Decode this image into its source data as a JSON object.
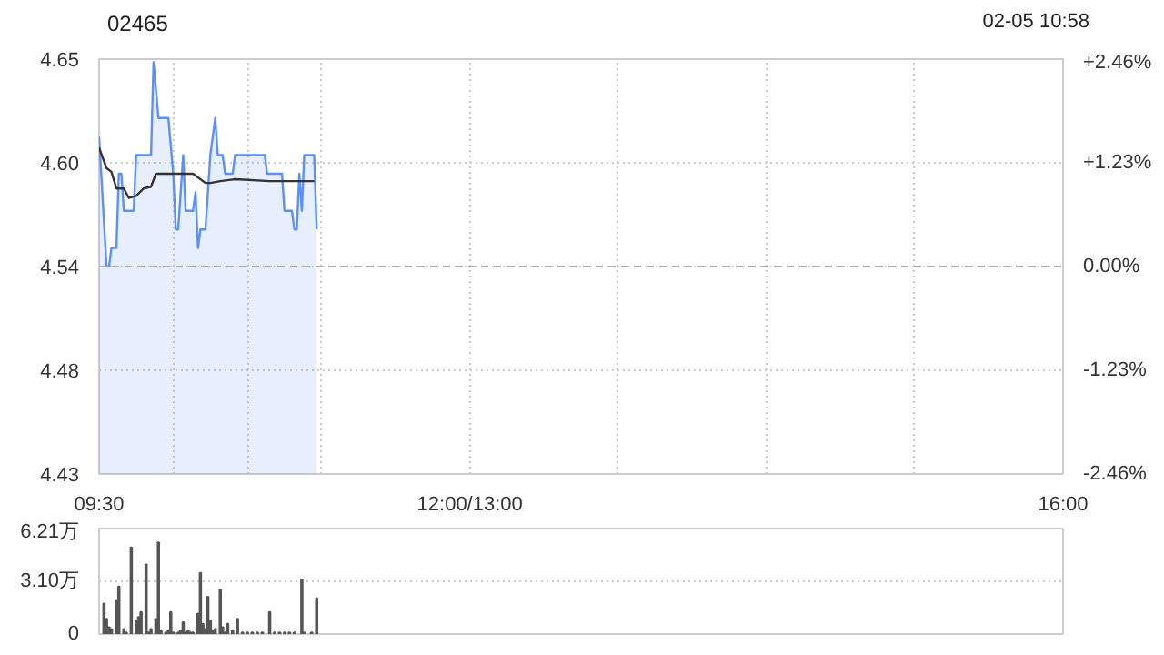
{
  "chart_data": [
    {
      "type": "line",
      "title": "02465",
      "annotations": [
        "02-05 10:58"
      ],
      "xlim": [
        9.5,
        16
      ],
      "xticks": [
        {
          "value": 9.5,
          "label": "09:30"
        },
        {
          "value": 10,
          "label": null
        },
        {
          "value": 10.5,
          "label": null
        },
        {
          "value": 11,
          "label": null
        },
        {
          "value": 12,
          "label": "12:00/13:00"
        },
        {
          "value": 13,
          "label": null
        },
        {
          "value": 14,
          "label": null
        },
        {
          "value": 15,
          "label": null
        },
        {
          "value": 16,
          "label": "16:00"
        }
      ],
      "ylim": [
        4.4283,
        4.6517
      ],
      "yticks": [
        {
          "value": 4.4283,
          "label": "4.43"
        },
        {
          "value": 4.4842,
          "label": "4.48"
        },
        {
          "value": 4.54,
          "label": "4.54"
        },
        {
          "value": 4.5958,
          "label": "4.60"
        },
        {
          "value": 4.6517,
          "label": "4.65"
        }
      ],
      "y2lim": [
        -2.46,
        2.46
      ],
      "y2ticks": [
        {
          "value": -2.46,
          "label": "-2.46%"
        },
        {
          "value": -1.23,
          "label": "-1.23%"
        },
        {
          "value": 0,
          "label": "0.00%"
        },
        {
          "value": 1.23,
          "label": "+1.23%"
        },
        {
          "value": 2.46,
          "label": "+2.46%"
        }
      ],
      "grid": true,
      "ref_lines": [
        {
          "axis": "y",
          "value": 4.54,
          "color": "#aaaaaa",
          "line_style": "dashed"
        }
      ],
      "series": [
        {
          "type": "area",
          "color": "#5b8ff9",
          "x": [
            9.5,
            9.55,
            9.567,
            9.583,
            9.617,
            9.633,
            9.65,
            9.667,
            9.733,
            9.75,
            9.85,
            9.867,
            9.9,
            9.967,
            10.0,
            10.017,
            10.033,
            10.067,
            10.083,
            10.133,
            10.15,
            10.167,
            10.183,
            10.217,
            10.25,
            10.283,
            10.3,
            10.333,
            10.35,
            10.4,
            10.417,
            10.617,
            10.633,
            10.733,
            10.75,
            10.8,
            10.817,
            10.833,
            10.85,
            10.867,
            10.883,
            10.95,
            10.967
          ],
          "values": [
            4.61,
            4.54,
            4.54,
            4.55,
            4.55,
            4.59,
            4.59,
            4.57,
            4.57,
            4.6,
            4.6,
            4.65,
            4.62,
            4.62,
            4.59,
            4.56,
            4.56,
            4.6,
            4.57,
            4.57,
            4.58,
            4.55,
            4.56,
            4.56,
            4.6,
            4.62,
            4.6,
            4.6,
            4.59,
            4.59,
            4.6,
            4.6,
            4.59,
            4.59,
            4.57,
            4.57,
            4.56,
            4.56,
            4.59,
            4.57,
            4.6,
            4.6,
            4.56
          ]
        },
        {
          "type": "line",
          "color": "#333333",
          "x": [
            9.5,
            9.55,
            9.583,
            9.617,
            9.667,
            9.7,
            9.75,
            9.8,
            9.85,
            9.883,
            9.967,
            10.067,
            10.133,
            10.217,
            10.25,
            10.317,
            10.417,
            10.65,
            10.95
          ],
          "values": [
            4.604,
            4.593,
            4.591,
            4.582,
            4.582,
            4.577,
            4.578,
            4.582,
            4.583,
            4.59,
            4.59,
            4.59,
            4.59,
            4.585,
            4.585,
            4.586,
            4.587,
            4.586,
            4.586
          ]
        }
      ]
    },
    {
      "type": "bar",
      "color": "#555555",
      "tick_labels": "y",
      "grid": "y",
      "x": [
        9.533,
        9.55,
        9.567,
        9.583,
        9.617,
        9.633,
        9.667,
        9.683,
        9.717,
        9.75,
        9.767,
        9.783,
        9.817,
        9.833,
        9.85,
        9.883,
        9.9,
        9.917,
        9.95,
        9.967,
        9.983,
        10.0,
        10.033,
        10.05,
        10.067,
        10.083,
        10.1,
        10.117,
        10.133,
        10.167,
        10.183,
        10.2,
        10.217,
        10.233,
        10.25,
        10.267,
        10.283,
        10.317,
        10.333,
        10.35,
        10.367,
        10.4,
        10.433,
        10.467,
        10.5,
        10.533,
        10.567,
        10.6,
        10.65,
        10.683,
        10.717,
        10.75,
        10.783,
        10.817,
        10.867,
        10.883,
        10.933,
        10.967
      ],
      "values": [
        1.8,
        0.9,
        0.4,
        0.3,
        2.0,
        2.8,
        0.3,
        0.1,
        5.1,
        0.8,
        1.0,
        1.3,
        4.1,
        0.1,
        0.3,
        0.9,
        5.4,
        0.2,
        0.1,
        0.2,
        1.3,
        0.1,
        0.1,
        0.2,
        0.7,
        0.1,
        0.2,
        0.1,
        0.1,
        1.2,
        3.6,
        0.6,
        0.3,
        2.2,
        0.8,
        0.2,
        0.3,
        2.6,
        0.4,
        0.1,
        0.6,
        0.2,
        0.9,
        0.1,
        0.1,
        0.1,
        0.1,
        0.1,
        1.3,
        0.1,
        0.1,
        0.1,
        0.1,
        0.1,
        3.2,
        0.1,
        0.1,
        2.1
      ],
      "xlim": [
        9.5,
        16
      ],
      "ylim": [
        0,
        6.21
      ],
      "yticks": [
        0,
        {
          "value": 3.1,
          "label": "3.10万"
        },
        {
          "value": 6.21,
          "label": "6.21万"
        }
      ]
    }
  ]
}
